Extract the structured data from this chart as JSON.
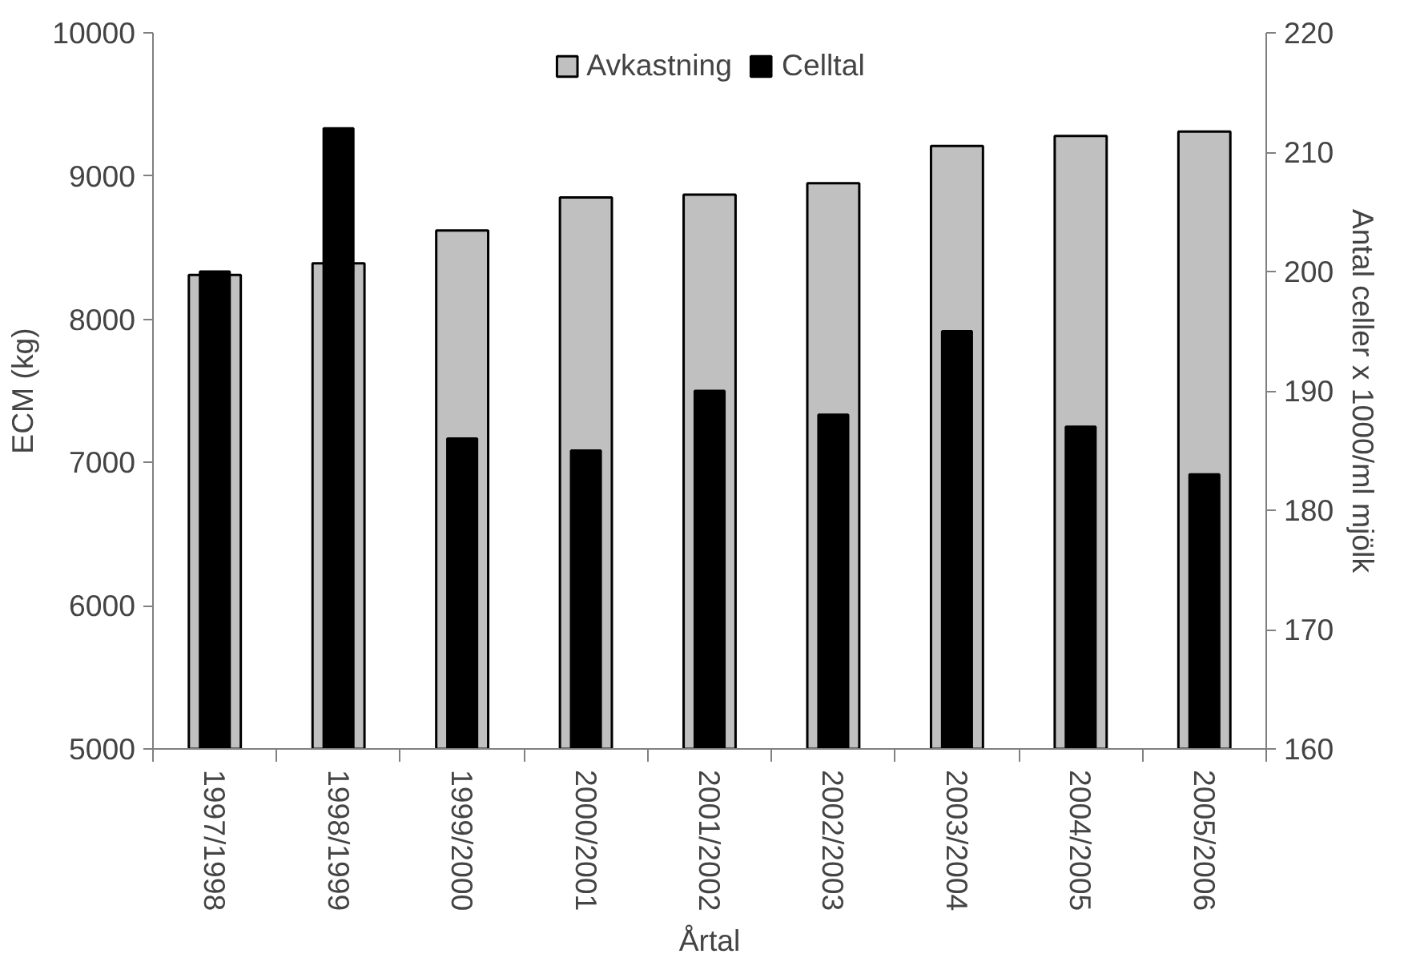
{
  "chart_data": {
    "type": "bar",
    "xlabel": "Årtal",
    "ylabel": "ECM (kg)",
    "y2label": "Antal celler x 1000/ml mjölk",
    "categories": [
      "1997/1998",
      "1998/1999",
      "1999/2000",
      "2000/2001",
      "2001/2002",
      "2002/2003",
      "2003/2004",
      "2004/2005",
      "2005/2006"
    ],
    "series": [
      {
        "name": "Avkastning",
        "color": "#c0c0c0",
        "values": [
          8310,
          8390,
          8620,
          8850,
          8870,
          8950,
          9210,
          9280,
          9310
        ]
      },
      {
        "name": "Celltal",
        "color": "#000000",
        "axis": "y2",
        "values": [
          200,
          212,
          186,
          185,
          190,
          188,
          195,
          187,
          183
        ]
      }
    ],
    "ylim": [
      5000,
      10000
    ],
    "yticks": [
      5000,
      6000,
      7000,
      8000,
      9000,
      10000
    ],
    "y2lim": [
      160,
      220
    ],
    "y2ticks": [
      160,
      170,
      180,
      190,
      200,
      210,
      220
    ],
    "grid": false,
    "legend": "top"
  }
}
